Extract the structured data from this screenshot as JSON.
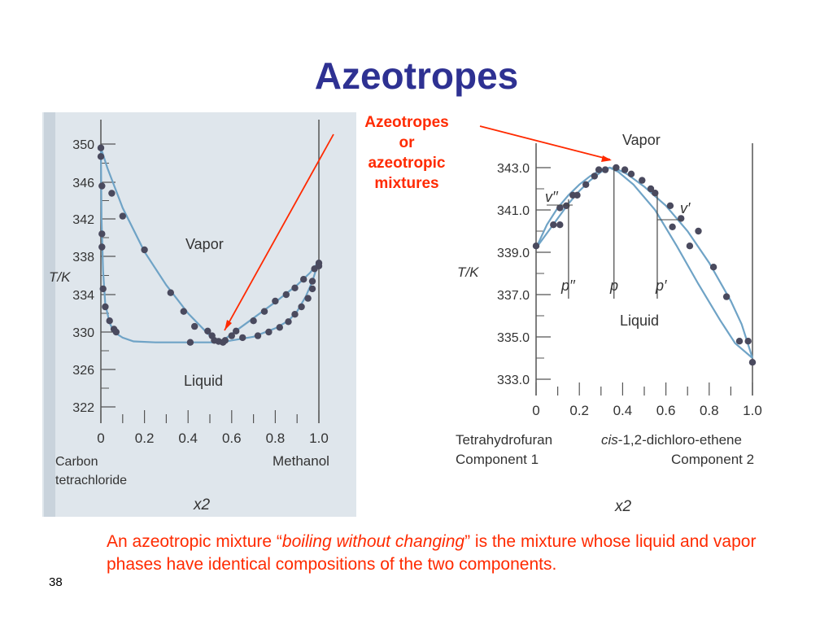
{
  "slide": {
    "title": "Azeotropes",
    "callout_lines": [
      "Azeotropes",
      "or",
      "azeotropic",
      "mixtures"
    ],
    "caption_parts": [
      "An azeotropic mixture “",
      "boiling without changing",
      "” is the mixture whose liquid and vapor phases have identical compositions of the two components."
    ],
    "slide_number": "38"
  },
  "colors": {
    "title": "#2e3192",
    "accent": "#ff2a00",
    "curve": "#6fa3c6",
    "marker": "#4a4a5e",
    "panel_left": "#dfe6ec",
    "panel_right": "#ffffff",
    "ink": "#333333"
  },
  "chart_data": [
    {
      "type": "line",
      "ylabel": "T/K",
      "xlabel": "x2",
      "xlim": [
        0,
        1
      ],
      "ylim": [
        321,
        352
      ],
      "x_ticks": [
        "0",
        "0.2",
        "0.4",
        "0.6",
        "0.8",
        "1.0"
      ],
      "y_ticks": [
        "350",
        "346",
        "342",
        "338",
        "334",
        "330",
        "326",
        "322"
      ],
      "component_left": [
        "Carbon",
        "tetrachloride"
      ],
      "component_right": "Methanol",
      "region_labels": [
        "Vapor",
        "Liquid"
      ],
      "grid": false,
      "series": [
        {
          "x": [
            0,
            0.003,
            0.01,
            0.02,
            0.04,
            0.06,
            0.1,
            0.15,
            0.25,
            0.35,
            0.45,
            0.5,
            0.53,
            0.55,
            0.6,
            0.7,
            0.8,
            0.86,
            0.9,
            0.94,
            0.97,
            0.99,
            1.0
          ],
          "y": [
            349.6,
            342,
            336.5,
            333,
            331,
            330,
            329.4,
            329,
            328.9,
            328.9,
            328.9,
            328.9,
            328.9,
            328.9,
            329.1,
            329.5,
            330.4,
            331.2,
            332.2,
            333.8,
            335.4,
            336.8,
            337.5
          ]
        },
        {
          "x": [
            0,
            0.03,
            0.1,
            0.2,
            0.3,
            0.4,
            0.45,
            0.5,
            0.53,
            0.55,
            0.6,
            0.7,
            0.8,
            0.9,
            0.96,
            1.0
          ],
          "y": [
            349.6,
            347.5,
            343.2,
            338.5,
            335,
            332,
            330.8,
            329.6,
            329,
            328.9,
            329.8,
            331.5,
            333.2,
            335,
            336.3,
            337.5
          ]
        }
      ],
      "points": [
        [
          0,
          349.6
        ],
        [
          0,
          348.7
        ],
        [
          0.005,
          345.6
        ],
        [
          0.005,
          340.4
        ],
        [
          0.005,
          339
        ],
        [
          0.01,
          334.6
        ],
        [
          0.02,
          332.7
        ],
        [
          0.04,
          331.2
        ],
        [
          0.06,
          330.3
        ],
        [
          0.07,
          330.0
        ],
        [
          0.05,
          344.8
        ],
        [
          0.1,
          342.3
        ],
        [
          0.2,
          338.7
        ],
        [
          0.32,
          334.2
        ],
        [
          0.38,
          332.2
        ],
        [
          0.43,
          330.6
        ],
        [
          0.49,
          330.1
        ],
        [
          0.51,
          329.6
        ],
        [
          0.52,
          329.1
        ],
        [
          0.54,
          329.0
        ],
        [
          0.56,
          328.9
        ],
        [
          0.57,
          329.1
        ],
        [
          0.6,
          329.6
        ],
        [
          0.41,
          328.9
        ],
        [
          0.62,
          330.1
        ],
        [
          0.7,
          331.2
        ],
        [
          0.75,
          332.2
        ],
        [
          0.8,
          333.3
        ],
        [
          0.85,
          334.0
        ],
        [
          0.89,
          334.7
        ],
        [
          0.93,
          335.6
        ],
        [
          0.98,
          336.7
        ],
        [
          0.97,
          335.4
        ],
        [
          1.0,
          337.3
        ],
        [
          1.0,
          337.0
        ],
        [
          0.65,
          329.4
        ],
        [
          0.72,
          329.6
        ],
        [
          0.77,
          330.0
        ],
        [
          0.82,
          330.5
        ],
        [
          0.86,
          331.1
        ],
        [
          0.89,
          331.9
        ],
        [
          0.92,
          332.7
        ],
        [
          0.95,
          333.6
        ],
        [
          0.97,
          334.6
        ]
      ]
    },
    {
      "type": "line",
      "ylabel": "T/K",
      "xlabel": "x2",
      "xlim": [
        0,
        1
      ],
      "ylim": [
        332.6,
        344
      ],
      "x_ticks": [
        "0",
        "0.2",
        "0.4",
        "0.6",
        "0.8",
        "1.0"
      ],
      "y_ticks": [
        "343.0",
        "341.0",
        "339.0",
        "337.0",
        "335.0",
        "333.0"
      ],
      "component_left": [
        "Tetrahydrofuran",
        "Component 1"
      ],
      "component_right_prefix": "cis",
      "component_right": "-1,2-dichloro-ethene",
      "component_right_sub": "Component 2",
      "region_labels": [
        "Vapor",
        "Liquid"
      ],
      "point_labels": [
        "v′′",
        "v′",
        "p′′",
        "p",
        "p′"
      ],
      "grid": false,
      "series": [
        {
          "x": [
            0,
            0.05,
            0.1,
            0.15,
            0.2,
            0.25,
            0.3,
            0.34,
            0.38,
            0.42,
            0.5,
            0.6,
            0.7,
            0.8,
            0.9,
            0.95,
            1.0
          ],
          "y": [
            339.2,
            340.3,
            341.1,
            341.7,
            342.2,
            342.6,
            342.9,
            343.0,
            342.9,
            342.7,
            342.1,
            341.2,
            340.0,
            338.5,
            336.7,
            335.6,
            334.0
          ]
        },
        {
          "x": [
            0,
            0.05,
            0.1,
            0.15,
            0.2,
            0.25,
            0.3,
            0.34,
            0.38,
            0.45,
            0.55,
            0.65,
            0.75,
            0.85,
            0.92,
            1.0
          ],
          "y": [
            339.2,
            339.9,
            340.6,
            341.3,
            341.9,
            342.4,
            342.8,
            343.0,
            342.8,
            342.2,
            341.0,
            339.3,
            337.5,
            335.8,
            334.7,
            334.0
          ]
        }
      ],
      "points": [
        [
          0,
          339.3
        ],
        [
          0.08,
          340.3
        ],
        [
          0.11,
          340.3
        ],
        [
          0.11,
          341.1
        ],
        [
          0.14,
          341.2
        ],
        [
          0.17,
          341.7
        ],
        [
          0.19,
          341.7
        ],
        [
          0.23,
          342.2
        ],
        [
          0.27,
          342.6
        ],
        [
          0.29,
          342.9
        ],
        [
          0.32,
          342.9
        ],
        [
          0.37,
          343.0
        ],
        [
          0.41,
          342.9
        ],
        [
          0.44,
          342.7
        ],
        [
          0.49,
          342.4
        ],
        [
          0.53,
          342.0
        ],
        [
          0.55,
          341.8
        ],
        [
          0.62,
          341.2
        ],
        [
          0.67,
          340.6
        ],
        [
          0.75,
          340.0
        ],
        [
          0.82,
          338.3
        ],
        [
          0.88,
          336.9
        ],
        [
          0.94,
          334.8
        ],
        [
          0.98,
          334.8
        ],
        [
          1.0,
          333.8
        ],
        [
          0.63,
          340.2
        ],
        [
          0.71,
          339.3
        ]
      ]
    }
  ]
}
